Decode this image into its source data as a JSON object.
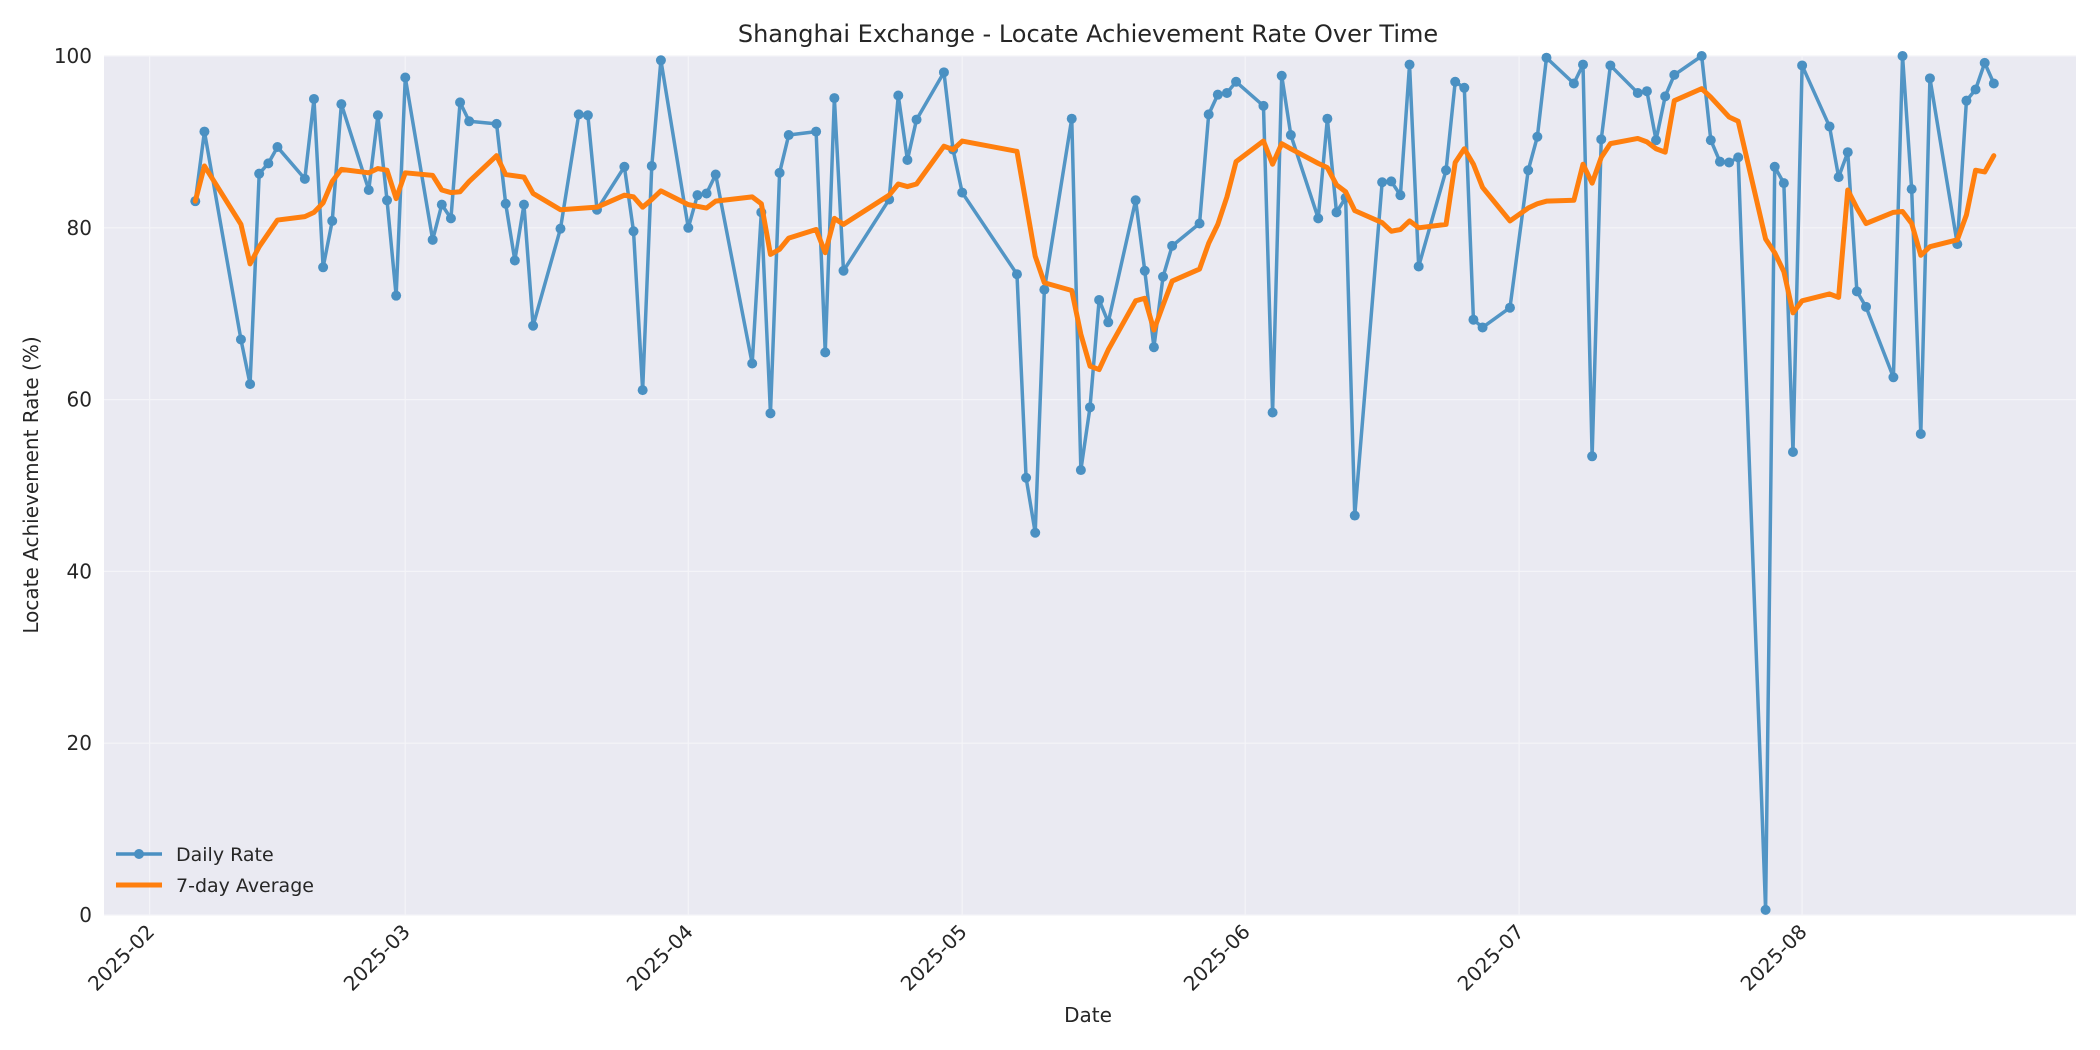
{
  "chart_data": {
    "type": "line",
    "title": "Shanghai Exchange - Locate Achievement Rate Over Time",
    "xlabel": "Date",
    "ylabel": "Locate Achievement Rate (%)",
    "ylim": [
      0,
      100
    ],
    "xlim": [
      "2025-01-27",
      "2025-08-31"
    ],
    "grid": true,
    "legend_position": "lower-left",
    "x_ticks": [
      "2025-02-01",
      "2025-03-01",
      "2025-04-01",
      "2025-05-01",
      "2025-06-01",
      "2025-07-01",
      "2025-08-01"
    ],
    "x_tick_labels": [
      "2025-02",
      "2025-03",
      "2025-04",
      "2025-05",
      "2025-06",
      "2025-07",
      "2025-08"
    ],
    "y_ticks": [
      0,
      20,
      40,
      60,
      80,
      100
    ],
    "colors": {
      "plot_background": "#eaeaf2",
      "grid": "#f4f4f8",
      "daily": "#4a90c2",
      "average": "#ff7f0e"
    },
    "series": [
      {
        "name": "Daily Rate",
        "marker": "circle",
        "points": [
          [
            "2025-02-06",
            83.1
          ],
          [
            "2025-02-07",
            91.2
          ],
          [
            "2025-02-11",
            67.0
          ],
          [
            "2025-02-12",
            61.8
          ],
          [
            "2025-02-13",
            86.3
          ],
          [
            "2025-02-14",
            87.5
          ],
          [
            "2025-02-15",
            89.4
          ],
          [
            "2025-02-18",
            85.7
          ],
          [
            "2025-02-19",
            95.0
          ],
          [
            "2025-02-20",
            75.4
          ],
          [
            "2025-02-21",
            80.8
          ],
          [
            "2025-02-22",
            94.4
          ],
          [
            "2025-02-25",
            84.4
          ],
          [
            "2025-02-26",
            93.1
          ],
          [
            "2025-02-27",
            83.2
          ],
          [
            "2025-02-28",
            72.1
          ],
          [
            "2025-03-01",
            97.5
          ],
          [
            "2025-03-04",
            78.6
          ],
          [
            "2025-03-05",
            82.7
          ],
          [
            "2025-03-06",
            81.1
          ],
          [
            "2025-03-07",
            94.6
          ],
          [
            "2025-03-08",
            92.4
          ],
          [
            "2025-03-11",
            92.1
          ],
          [
            "2025-03-12",
            82.8
          ],
          [
            "2025-03-13",
            76.2
          ],
          [
            "2025-03-14",
            82.7
          ],
          [
            "2025-03-15",
            68.6
          ],
          [
            "2025-03-18",
            79.9
          ],
          [
            "2025-03-20",
            93.2
          ],
          [
            "2025-03-21",
            93.1
          ],
          [
            "2025-03-22",
            82.1
          ],
          [
            "2025-03-25",
            87.1
          ],
          [
            "2025-03-26",
            79.6
          ],
          [
            "2025-03-27",
            61.1
          ],
          [
            "2025-03-28",
            87.2
          ],
          [
            "2025-03-29",
            99.5
          ],
          [
            "2025-04-01",
            80.0
          ],
          [
            "2025-04-02",
            83.8
          ],
          [
            "2025-04-03",
            84.0
          ],
          [
            "2025-04-04",
            86.2
          ],
          [
            "2025-04-08",
            64.2
          ],
          [
            "2025-04-09",
            81.8
          ],
          [
            "2025-04-10",
            58.4
          ],
          [
            "2025-04-11",
            86.4
          ],
          [
            "2025-04-12",
            90.8
          ],
          [
            "2025-04-15",
            91.2
          ],
          [
            "2025-04-16",
            65.5
          ],
          [
            "2025-04-17",
            95.1
          ],
          [
            "2025-04-18",
            75.0
          ],
          [
            "2025-04-23",
            83.3
          ],
          [
            "2025-04-24",
            95.4
          ],
          [
            "2025-04-25",
            87.9
          ],
          [
            "2025-04-26",
            92.6
          ],
          [
            "2025-04-29",
            98.1
          ],
          [
            "2025-04-30",
            89.1
          ],
          [
            "2025-05-01",
            84.1
          ],
          [
            "2025-05-07",
            74.6
          ],
          [
            "2025-05-08",
            50.9
          ],
          [
            "2025-05-09",
            44.5
          ],
          [
            "2025-05-10",
            72.8
          ],
          [
            "2025-05-13",
            92.7
          ],
          [
            "2025-05-14",
            51.8
          ],
          [
            "2025-05-15",
            59.1
          ],
          [
            "2025-05-16",
            71.6
          ],
          [
            "2025-05-17",
            69.0
          ],
          [
            "2025-05-20",
            83.2
          ],
          [
            "2025-05-21",
            75.0
          ],
          [
            "2025-05-22",
            66.1
          ],
          [
            "2025-05-23",
            74.3
          ],
          [
            "2025-05-24",
            77.9
          ],
          [
            "2025-05-27",
            80.5
          ],
          [
            "2025-05-28",
            93.2
          ],
          [
            "2025-05-29",
            95.5
          ],
          [
            "2025-05-30",
            95.7
          ],
          [
            "2025-05-31",
            97.0
          ],
          [
            "2025-06-03",
            94.2
          ],
          [
            "2025-06-04",
            58.5
          ],
          [
            "2025-06-05",
            97.7
          ],
          [
            "2025-06-06",
            90.8
          ],
          [
            "2025-06-09",
            81.1
          ],
          [
            "2025-06-10",
            92.7
          ],
          [
            "2025-06-11",
            81.8
          ],
          [
            "2025-06-12",
            83.5
          ],
          [
            "2025-06-13",
            46.5
          ],
          [
            "2025-06-16",
            85.3
          ],
          [
            "2025-06-17",
            85.4
          ],
          [
            "2025-06-18",
            83.8
          ],
          [
            "2025-06-19",
            99.0
          ],
          [
            "2025-06-20",
            75.5
          ],
          [
            "2025-06-23",
            86.7
          ],
          [
            "2025-06-24",
            97.0
          ],
          [
            "2025-06-25",
            96.3
          ],
          [
            "2025-06-26",
            69.3
          ],
          [
            "2025-06-27",
            68.4
          ],
          [
            "2025-06-30",
            70.7
          ],
          [
            "2025-07-02",
            86.7
          ],
          [
            "2025-07-03",
            90.6
          ],
          [
            "2025-07-04",
            99.8
          ],
          [
            "2025-07-07",
            96.8
          ],
          [
            "2025-07-08",
            99.0
          ],
          [
            "2025-07-09",
            53.4
          ],
          [
            "2025-07-10",
            90.3
          ],
          [
            "2025-07-11",
            98.9
          ],
          [
            "2025-07-14",
            95.7
          ],
          [
            "2025-07-15",
            95.9
          ],
          [
            "2025-07-16",
            90.2
          ],
          [
            "2025-07-17",
            95.3
          ],
          [
            "2025-07-18",
            97.8
          ],
          [
            "2025-07-21",
            100.0
          ],
          [
            "2025-07-22",
            90.2
          ],
          [
            "2025-07-23",
            87.7
          ],
          [
            "2025-07-24",
            87.6
          ],
          [
            "2025-07-25",
            88.2
          ],
          [
            "2025-07-28",
            0.6
          ],
          [
            "2025-07-29",
            87.1
          ],
          [
            "2025-07-30",
            85.2
          ],
          [
            "2025-07-31",
            53.9
          ],
          [
            "2025-08-01",
            98.9
          ],
          [
            "2025-08-04",
            91.8
          ],
          [
            "2025-08-05",
            85.9
          ],
          [
            "2025-08-06",
            88.8
          ],
          [
            "2025-08-07",
            72.6
          ],
          [
            "2025-08-08",
            70.8
          ],
          [
            "2025-08-11",
            62.6
          ],
          [
            "2025-08-12",
            100.0
          ],
          [
            "2025-08-13",
            84.5
          ],
          [
            "2025-08-14",
            56.0
          ],
          [
            "2025-08-15",
            97.4
          ],
          [
            "2025-08-18",
            78.1
          ],
          [
            "2025-08-19",
            94.8
          ],
          [
            "2025-08-20",
            96.1
          ],
          [
            "2025-08-21",
            99.2
          ],
          [
            "2025-08-22",
            96.8
          ]
        ]
      },
      {
        "name": "7-day Average",
        "points": [
          [
            "2025-02-06",
            83.1
          ],
          [
            "2025-02-07",
            87.2
          ],
          [
            "2025-02-11",
            80.4
          ],
          [
            "2025-02-12",
            75.8
          ],
          [
            "2025-02-13",
            77.8
          ],
          [
            "2025-02-15",
            80.9
          ],
          [
            "2025-02-18",
            81.3
          ],
          [
            "2025-02-19",
            81.8
          ],
          [
            "2025-02-20",
            82.9
          ],
          [
            "2025-02-21",
            85.4
          ],
          [
            "2025-02-22",
            86.8
          ],
          [
            "2025-02-25",
            86.4
          ],
          [
            "2025-02-26",
            86.9
          ],
          [
            "2025-02-27",
            86.7
          ],
          [
            "2025-02-28",
            83.4
          ],
          [
            "2025-03-01",
            86.4
          ],
          [
            "2025-03-04",
            86.1
          ],
          [
            "2025-03-05",
            84.4
          ],
          [
            "2025-03-06",
            84.1
          ],
          [
            "2025-03-07",
            84.2
          ],
          [
            "2025-03-08",
            85.4
          ],
          [
            "2025-03-11",
            88.4
          ],
          [
            "2025-03-12",
            86.2
          ],
          [
            "2025-03-14",
            85.9
          ],
          [
            "2025-03-15",
            84.0
          ],
          [
            "2025-03-18",
            82.1
          ],
          [
            "2025-03-22",
            82.4
          ],
          [
            "2025-03-25",
            83.8
          ],
          [
            "2025-03-26",
            83.6
          ],
          [
            "2025-03-27",
            82.4
          ],
          [
            "2025-03-28",
            83.3
          ],
          [
            "2025-03-29",
            84.3
          ],
          [
            "2025-04-01",
            82.7
          ],
          [
            "2025-04-03",
            82.3
          ],
          [
            "2025-04-04",
            83.1
          ],
          [
            "2025-04-08",
            83.6
          ],
          [
            "2025-04-09",
            82.8
          ],
          [
            "2025-04-10",
            76.9
          ],
          [
            "2025-04-11",
            77.5
          ],
          [
            "2025-04-12",
            78.8
          ],
          [
            "2025-04-15",
            79.8
          ],
          [
            "2025-04-16",
            77.1
          ],
          [
            "2025-04-17",
            81.1
          ],
          [
            "2025-04-18",
            80.4
          ],
          [
            "2025-04-23",
            83.8
          ],
          [
            "2025-04-24",
            85.1
          ],
          [
            "2025-04-25",
            84.8
          ],
          [
            "2025-04-26",
            85.1
          ],
          [
            "2025-04-29",
            89.5
          ],
          [
            "2025-04-30",
            89.1
          ],
          [
            "2025-05-01",
            90.1
          ],
          [
            "2025-05-07",
            88.9
          ],
          [
            "2025-05-09",
            76.7
          ],
          [
            "2025-05-10",
            73.6
          ],
          [
            "2025-05-13",
            72.7
          ],
          [
            "2025-05-14",
            67.6
          ],
          [
            "2025-05-15",
            63.9
          ],
          [
            "2025-05-16",
            63.5
          ],
          [
            "2025-05-17",
            65.8
          ],
          [
            "2025-05-20",
            71.5
          ],
          [
            "2025-05-21",
            71.8
          ],
          [
            "2025-05-22",
            68.1
          ],
          [
            "2025-05-23",
            71.0
          ],
          [
            "2025-05-24",
            73.8
          ],
          [
            "2025-05-27",
            75.2
          ],
          [
            "2025-05-28",
            78.2
          ],
          [
            "2025-05-29",
            80.4
          ],
          [
            "2025-05-30",
            83.6
          ],
          [
            "2025-05-31",
            87.7
          ],
          [
            "2025-06-03",
            90.1
          ],
          [
            "2025-06-04",
            87.4
          ],
          [
            "2025-06-05",
            89.8
          ],
          [
            "2025-06-06",
            89.2
          ],
          [
            "2025-06-09",
            87.5
          ],
          [
            "2025-06-10",
            87.0
          ],
          [
            "2025-06-11",
            85.0
          ],
          [
            "2025-06-12",
            84.2
          ],
          [
            "2025-06-13",
            82.0
          ],
          [
            "2025-06-16",
            80.6
          ],
          [
            "2025-06-17",
            79.6
          ],
          [
            "2025-06-18",
            79.8
          ],
          [
            "2025-06-19",
            80.8
          ],
          [
            "2025-06-20",
            80.0
          ],
          [
            "2025-06-23",
            80.4
          ],
          [
            "2025-06-24",
            87.6
          ],
          [
            "2025-06-25",
            89.2
          ],
          [
            "2025-06-26",
            87.4
          ],
          [
            "2025-06-27",
            84.7
          ],
          [
            "2025-06-30",
            80.8
          ],
          [
            "2025-07-02",
            82.3
          ],
          [
            "2025-07-03",
            82.8
          ],
          [
            "2025-07-04",
            83.1
          ],
          [
            "2025-07-07",
            83.2
          ],
          [
            "2025-07-08",
            87.4
          ],
          [
            "2025-07-09",
            85.2
          ],
          [
            "2025-07-10",
            88.2
          ],
          [
            "2025-07-11",
            89.8
          ],
          [
            "2025-07-14",
            90.4
          ],
          [
            "2025-07-15",
            90.0
          ],
          [
            "2025-07-16",
            89.2
          ],
          [
            "2025-07-17",
            88.8
          ],
          [
            "2025-07-18",
            94.8
          ],
          [
            "2025-07-21",
            96.2
          ],
          [
            "2025-07-22",
            95.2
          ],
          [
            "2025-07-24",
            92.9
          ],
          [
            "2025-07-25",
            92.4
          ],
          [
            "2025-07-28",
            78.7
          ],
          [
            "2025-07-29",
            77.1
          ],
          [
            "2025-07-30",
            74.9
          ],
          [
            "2025-07-31",
            70.1
          ],
          [
            "2025-08-01",
            71.5
          ],
          [
            "2025-08-04",
            72.3
          ],
          [
            "2025-08-05",
            71.9
          ],
          [
            "2025-08-06",
            84.4
          ],
          [
            "2025-08-07",
            82.3
          ],
          [
            "2025-08-08",
            80.5
          ],
          [
            "2025-08-11",
            81.8
          ],
          [
            "2025-08-12",
            81.9
          ],
          [
            "2025-08-13",
            80.5
          ],
          [
            "2025-08-14",
            76.8
          ],
          [
            "2025-08-15",
            77.8
          ],
          [
            "2025-08-18",
            78.6
          ],
          [
            "2025-08-19",
            81.5
          ],
          [
            "2025-08-20",
            86.7
          ],
          [
            "2025-08-21",
            86.5
          ],
          [
            "2025-08-22",
            88.4
          ]
        ]
      }
    ]
  }
}
